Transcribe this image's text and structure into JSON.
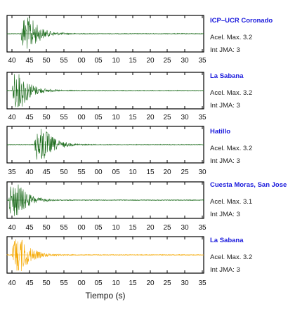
{
  "xlabel": "Tiempo (s)",
  "colors": {
    "green": "#1b6b1b",
    "orange": "#f5a800",
    "axis": "#000000",
    "station": "#1a1adc"
  },
  "chart_data": [
    {
      "type": "line",
      "station": "ICP–UCR Coronado",
      "accel": "Acel. Max. 3.2",
      "jma": "Int JMA: 3",
      "color": "#1b6b1b",
      "tick_labels": [
        "40",
        "45",
        "50",
        "55",
        "00",
        "05",
        "10",
        "15",
        "20",
        "25",
        "30",
        "35"
      ],
      "onset_s": 3.0,
      "xlim_s": [
        0,
        57
      ],
      "note": "waveform trace, values qualitative"
    },
    {
      "type": "line",
      "station": "La Sabana",
      "accel": "Acel. Max. 3.2",
      "jma": "Int JMA: 3",
      "color": "#1b6b1b",
      "tick_labels": [
        "40",
        "45",
        "50",
        "55",
        "00",
        "05",
        "10",
        "15",
        "20",
        "25",
        "30",
        "35"
      ],
      "onset_s": 0.5,
      "xlim_s": [
        0,
        57
      ]
    },
    {
      "type": "line",
      "station": "Hatillo",
      "accel": "Acel. Max. 3.2",
      "jma": "Int JMA: 3",
      "color": "#1b6b1b",
      "tick_labels": [
        "35",
        "40",
        "45",
        "50",
        "55",
        "00",
        "05",
        "10",
        "15",
        "20",
        "25",
        "30"
      ],
      "onset_s": 7.0,
      "xlim_s": [
        0,
        57
      ]
    },
    {
      "type": "line",
      "station": "Cuesta Moras, San Jose",
      "accel": "Acel. Max. 3.1",
      "jma": "Int JMA: 3",
      "color": "#1b6b1b",
      "tick_labels": [
        "40",
        "45",
        "50",
        "55",
        "00",
        "05",
        "10",
        "15",
        "20",
        "25",
        "30",
        "35"
      ],
      "onset_s": -0.5,
      "xlim_s": [
        0,
        57
      ]
    },
    {
      "type": "line",
      "station": "La Sabana",
      "accel": "Acel. Max. 3.2",
      "jma": "Int JMA: 3",
      "color": "#f5a800",
      "tick_labels": [
        "40",
        "45",
        "50",
        "55",
        "00",
        "05",
        "10",
        "15",
        "20",
        "25",
        "30",
        "35"
      ],
      "onset_s": 0.5,
      "xlim_s": [
        0,
        57
      ]
    }
  ]
}
